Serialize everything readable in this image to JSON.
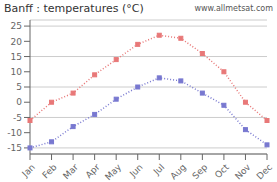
{
  "chart_data": {
    "type": "line",
    "title": "Banff : temperatures (°C)",
    "annotation": "www.allmetsat.com",
    "categories": [
      "Jan",
      "Feb",
      "Mar",
      "Apr",
      "May",
      "Jun",
      "Jul",
      "Aug",
      "Sep",
      "Oct",
      "Nov",
      "Dec"
    ],
    "series": [
      {
        "color": "#e87878",
        "marker": "square",
        "line_style": "dotted",
        "values": [
          -6,
          0,
          3,
          9,
          14,
          19,
          22,
          21,
          16,
          10,
          0,
          -6
        ]
      },
      {
        "color": "#7878d0",
        "marker": "square",
        "line_style": "dotted",
        "values": [
          -15,
          -13,
          -8,
          -4,
          1,
          5,
          8,
          7,
          3,
          -1,
          -9,
          -14
        ]
      }
    ],
    "ylim": [
      -17,
      27
    ],
    "yticks": [
      -15,
      -10,
      -5,
      0,
      5,
      10,
      15,
      20,
      25
    ],
    "grid": true
  }
}
